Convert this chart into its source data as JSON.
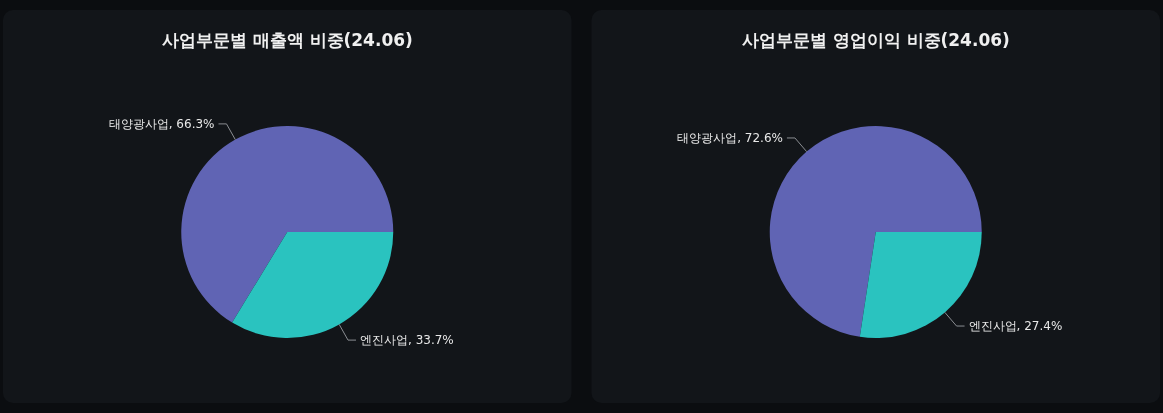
{
  "chart_data": [
    {
      "type": "pie",
      "title": "사업부문별 매출액 비중(24.06)",
      "categories": [
        "태양광사업",
        "엔진사업"
      ],
      "values": [
        66.3,
        33.7
      ],
      "value_labels": [
        "66.3%",
        "33.7%"
      ],
      "colors": [
        "#6064b4",
        "#2ac3bf"
      ]
    },
    {
      "type": "pie",
      "title": "사업부문별 영업이익 비중(24.06)",
      "categories": [
        "태양광사업",
        "엔진사업"
      ],
      "values": [
        72.6,
        27.4
      ],
      "value_labels": [
        "72.6%",
        "27.4%"
      ],
      "colors": [
        "#6064b4",
        "#2ac3bf"
      ]
    }
  ]
}
